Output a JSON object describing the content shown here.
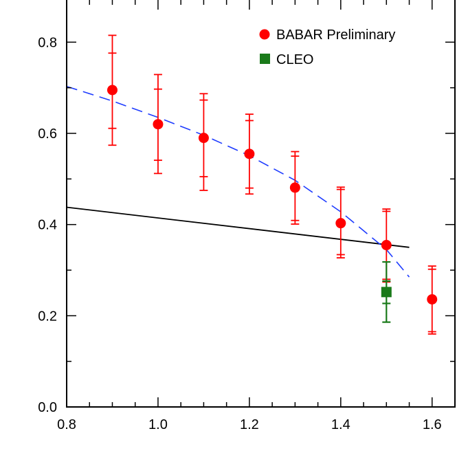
{
  "chart_data": {
    "type": "scatter",
    "title": "",
    "xlabel": "",
    "ylabel": "",
    "xlim": [
      0.8,
      1.65
    ],
    "ylim": [
      0.0,
      0.9
    ],
    "grid": false,
    "legend_position": "top-right",
    "x_ticks": [
      0.8,
      1.0,
      1.2,
      1.4,
      1.6
    ],
    "y_ticks": [
      0.0,
      0.2,
      0.4,
      0.6,
      0.8
    ],
    "x_tick_labels": [
      "0.8",
      "1.0",
      "1.2",
      "1.4",
      "1.6"
    ],
    "y_tick_labels": [
      "0.0",
      "0.2",
      "0.4",
      "0.6",
      "0.8"
    ],
    "series": [
      {
        "name": "BABAR Preliminary",
        "marker": "circle",
        "color": "#ff0000",
        "points": [
          {
            "x": 0.9,
            "y": 0.695,
            "err_inner": [
              0.611,
              0.776
            ],
            "err_outer": [
              0.574,
              0.815
            ]
          },
          {
            "x": 1.0,
            "y": 0.62,
            "err_inner": [
              0.541,
              0.697
            ],
            "err_outer": [
              0.512,
              0.729
            ]
          },
          {
            "x": 1.1,
            "y": 0.59,
            "err_inner": [
              0.505,
              0.673
            ],
            "err_outer": [
              0.475,
              0.687
            ]
          },
          {
            "x": 1.2,
            "y": 0.555,
            "err_inner": [
              0.48,
              0.628
            ],
            "err_outer": [
              0.467,
              0.642
            ]
          },
          {
            "x": 1.3,
            "y": 0.481,
            "err_inner": [
              0.409,
              0.55
            ],
            "err_outer": [
              0.401,
              0.56
            ]
          },
          {
            "x": 1.4,
            "y": 0.403,
            "err_inner": [
              0.334,
              0.477
            ],
            "err_outer": [
              0.327,
              0.482
            ]
          },
          {
            "x": 1.5,
            "y": 0.355,
            "err_inner": [
              0.28,
              0.429
            ],
            "err_outer": [
              0.274,
              0.434
            ]
          },
          {
            "x": 1.6,
            "y": 0.236,
            "err_inner": [
              0.165,
              0.302
            ],
            "err_outer": [
              0.16,
              0.309
            ]
          }
        ]
      },
      {
        "name": "CLEO",
        "marker": "square",
        "color": "#1a7a1a",
        "points": [
          {
            "x": 1.5,
            "y": 0.252,
            "err_inner": [
              0.227,
              0.276
            ],
            "err_outer": [
              0.186,
              0.318
            ]
          }
        ]
      }
    ],
    "curves": [
      {
        "name": "solid-line",
        "style": "solid",
        "color": "#000000",
        "x": [
          0.8,
          1.55
        ],
        "y": [
          0.438,
          0.35
        ]
      },
      {
        "name": "dashed-line",
        "style": "dashed",
        "color": "#1e3cff",
        "x": [
          0.8,
          0.9,
          1.0,
          1.1,
          1.2,
          1.3,
          1.4,
          1.5,
          1.55
        ],
        "y": [
          0.703,
          0.671,
          0.635,
          0.596,
          0.551,
          0.497,
          0.428,
          0.345,
          0.285
        ]
      }
    ]
  }
}
